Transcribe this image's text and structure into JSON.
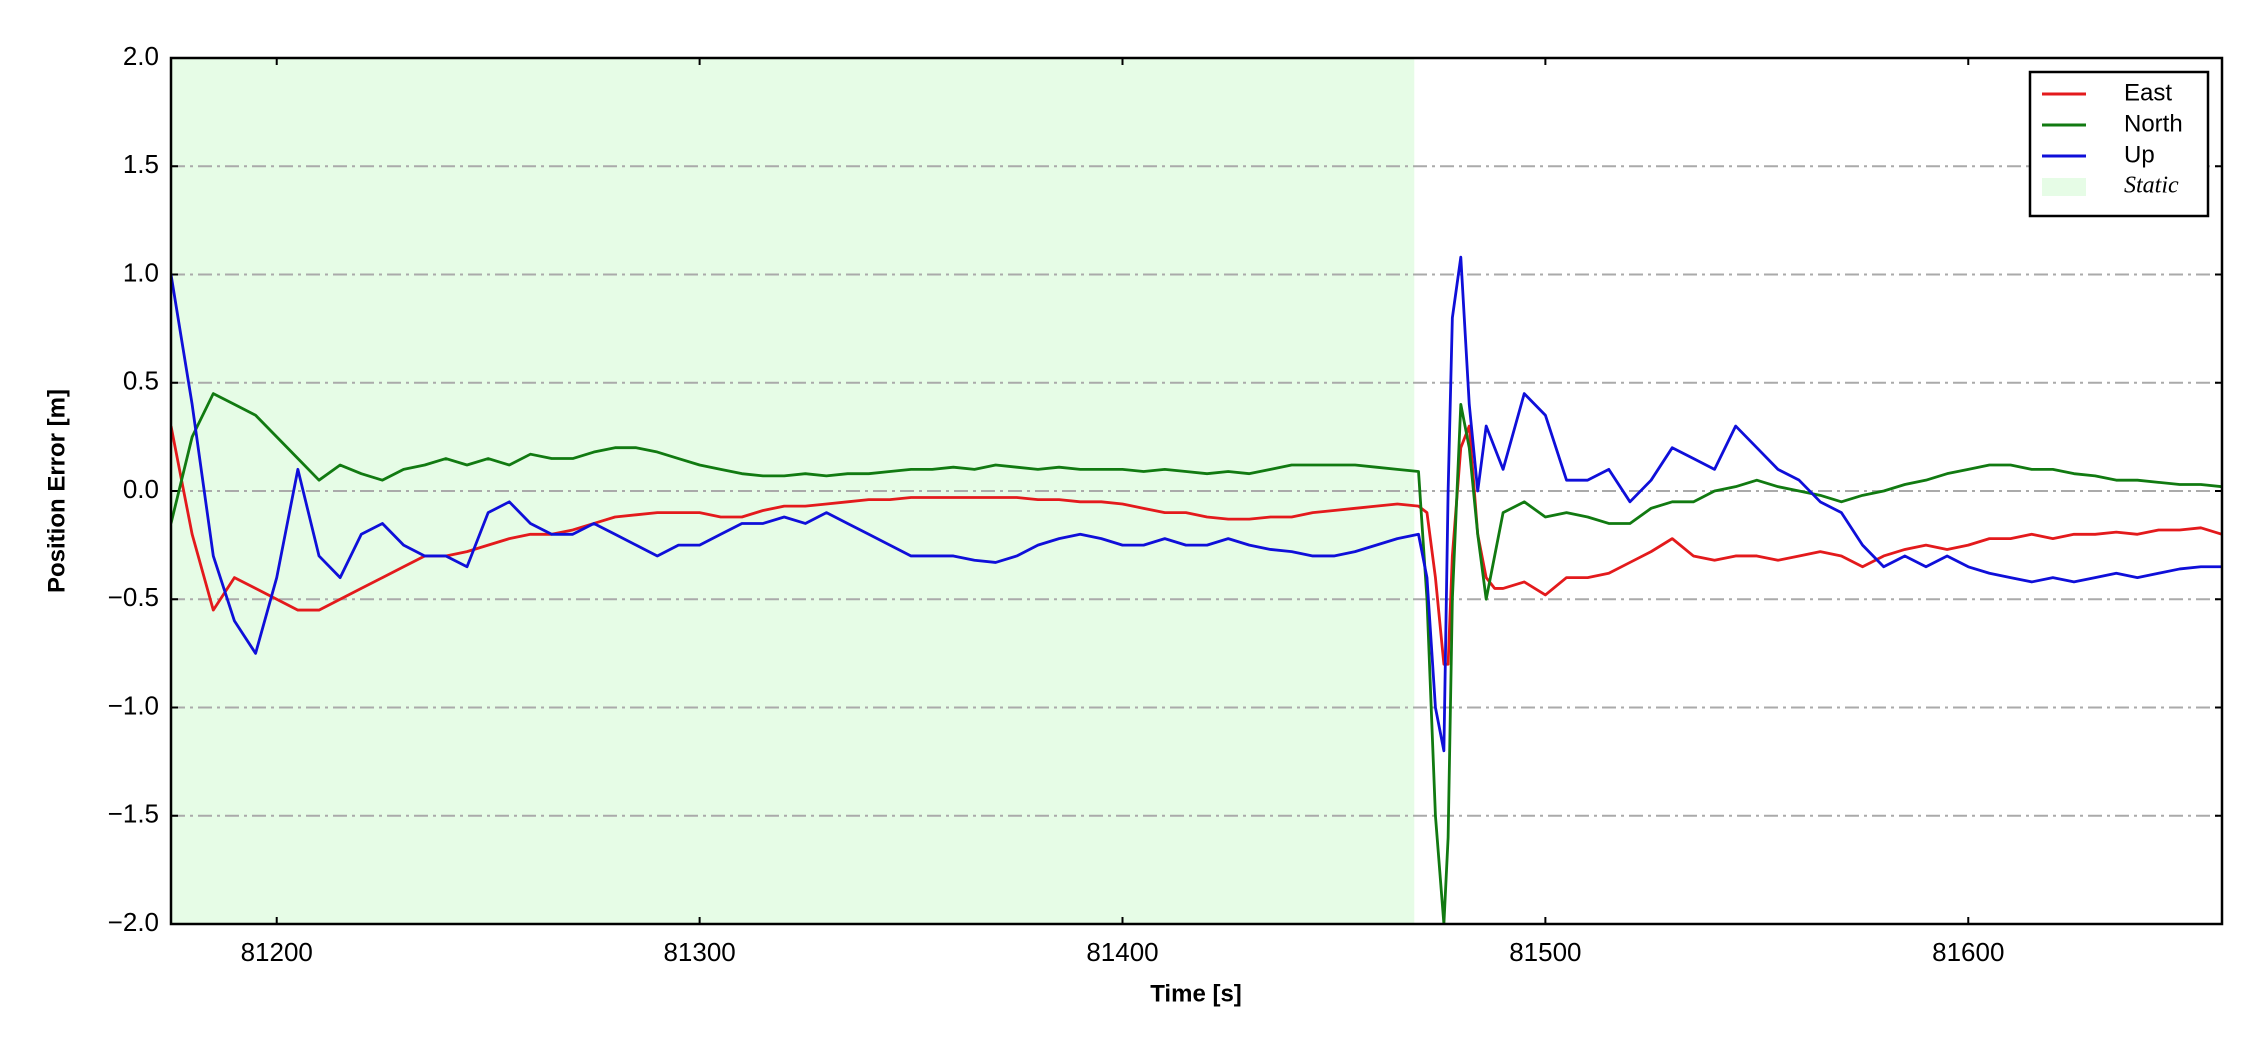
{
  "chart_data": {
    "type": "line",
    "xlabel": "Time [s]",
    "ylabel": "Position Error [m]",
    "x": [
      81175,
      81180,
      81185,
      81190,
      81195,
      81200,
      81205,
      81210,
      81215,
      81220,
      81225,
      81230,
      81235,
      81240,
      81245,
      81250,
      81255,
      81260,
      81265,
      81270,
      81275,
      81280,
      81285,
      81290,
      81295,
      81300,
      81305,
      81310,
      81315,
      81320,
      81325,
      81330,
      81335,
      81340,
      81345,
      81350,
      81355,
      81360,
      81365,
      81370,
      81375,
      81380,
      81385,
      81390,
      81395,
      81400,
      81405,
      81410,
      81415,
      81420,
      81425,
      81430,
      81435,
      81440,
      81445,
      81450,
      81455,
      81460,
      81465,
      81470,
      81472,
      81474,
      81476,
      81477,
      81478,
      81480,
      81482,
      81484,
      81486,
      81488,
      81490,
      81495,
      81500,
      81505,
      81510,
      81515,
      81520,
      81525,
      81530,
      81535,
      81540,
      81545,
      81550,
      81555,
      81560,
      81565,
      81570,
      81575,
      81580,
      81585,
      81590,
      81595,
      81600,
      81605,
      81610,
      81615,
      81620,
      81625,
      81630,
      81635,
      81640,
      81645,
      81650,
      81655,
      81660
    ],
    "series": [
      {
        "name": "East",
        "color": "#e31a1c",
        "values": [
          0.3,
          -0.2,
          -0.55,
          -0.4,
          -0.45,
          -0.5,
          -0.55,
          -0.55,
          -0.5,
          -0.45,
          -0.4,
          -0.35,
          -0.3,
          -0.3,
          -0.28,
          -0.25,
          -0.22,
          -0.2,
          -0.2,
          -0.18,
          -0.15,
          -0.12,
          -0.11,
          -0.1,
          -0.1,
          -0.1,
          -0.12,
          -0.12,
          -0.09,
          -0.07,
          -0.07,
          -0.06,
          -0.05,
          -0.04,
          -0.04,
          -0.03,
          -0.03,
          -0.03,
          -0.03,
          -0.03,
          -0.03,
          -0.04,
          -0.04,
          -0.05,
          -0.05,
          -0.06,
          -0.08,
          -0.1,
          -0.1,
          -0.12,
          -0.13,
          -0.13,
          -0.12,
          -0.12,
          -0.1,
          -0.09,
          -0.08,
          -0.07,
          -0.06,
          -0.07,
          -0.1,
          -0.4,
          -0.8,
          -0.8,
          -0.3,
          0.2,
          0.3,
          -0.2,
          -0.4,
          -0.45,
          -0.45,
          -0.42,
          -0.48,
          -0.4,
          -0.4,
          -0.38,
          -0.33,
          -0.28,
          -0.22,
          -0.3,
          -0.32,
          -0.3,
          -0.3,
          -0.32,
          -0.3,
          -0.28,
          -0.3,
          -0.35,
          -0.3,
          -0.27,
          -0.25,
          -0.27,
          -0.25,
          -0.22,
          -0.22,
          -0.2,
          -0.22,
          -0.2,
          -0.2,
          -0.19,
          -0.2,
          -0.18,
          -0.18,
          -0.17,
          -0.2
        ]
      },
      {
        "name": "North",
        "color": "#117a11",
        "values": [
          -0.15,
          0.25,
          0.45,
          0.4,
          0.35,
          0.25,
          0.15,
          0.05,
          0.12,
          0.08,
          0.05,
          0.1,
          0.12,
          0.15,
          0.12,
          0.15,
          0.12,
          0.17,
          0.15,
          0.15,
          0.18,
          0.2,
          0.2,
          0.18,
          0.15,
          0.12,
          0.1,
          0.08,
          0.07,
          0.07,
          0.08,
          0.07,
          0.08,
          0.08,
          0.09,
          0.1,
          0.1,
          0.11,
          0.1,
          0.12,
          0.11,
          0.1,
          0.11,
          0.1,
          0.1,
          0.1,
          0.09,
          0.1,
          0.09,
          0.08,
          0.09,
          0.08,
          0.1,
          0.12,
          0.12,
          0.12,
          0.12,
          0.11,
          0.1,
          0.09,
          -0.5,
          -1.5,
          -2.0,
          -1.6,
          -0.5,
          0.4,
          0.2,
          -0.2,
          -0.5,
          -0.3,
          -0.1,
          -0.05,
          -0.12,
          -0.1,
          -0.12,
          -0.15,
          -0.15,
          -0.08,
          -0.05,
          -0.05,
          0.0,
          0.02,
          0.05,
          0.02,
          0.0,
          -0.02,
          -0.05,
          -0.02,
          0.0,
          0.03,
          0.05,
          0.08,
          0.1,
          0.12,
          0.12,
          0.1,
          0.1,
          0.08,
          0.07,
          0.05,
          0.05,
          0.04,
          0.03,
          0.03,
          0.02
        ]
      },
      {
        "name": "Up",
        "color": "#0f0fd9",
        "values": [
          1.0,
          0.4,
          -0.3,
          -0.6,
          -0.75,
          -0.4,
          0.1,
          -0.3,
          -0.4,
          -0.2,
          -0.15,
          -0.25,
          -0.3,
          -0.3,
          -0.35,
          -0.1,
          -0.05,
          -0.15,
          -0.2,
          -0.2,
          -0.15,
          -0.2,
          -0.25,
          -0.3,
          -0.25,
          -0.25,
          -0.2,
          -0.15,
          -0.15,
          -0.12,
          -0.15,
          -0.1,
          -0.15,
          -0.2,
          -0.25,
          -0.3,
          -0.3,
          -0.3,
          -0.32,
          -0.33,
          -0.3,
          -0.25,
          -0.22,
          -0.2,
          -0.22,
          -0.25,
          -0.25,
          -0.22,
          -0.25,
          -0.25,
          -0.22,
          -0.25,
          -0.27,
          -0.28,
          -0.3,
          -0.3,
          -0.28,
          -0.25,
          -0.22,
          -0.2,
          -0.4,
          -1.0,
          -1.2,
          0.0,
          0.8,
          1.08,
          0.4,
          0.0,
          0.3,
          0.2,
          0.1,
          0.45,
          0.35,
          0.05,
          0.05,
          0.1,
          -0.05,
          0.05,
          0.2,
          0.15,
          0.1,
          0.3,
          0.2,
          0.1,
          0.05,
          -0.05,
          -0.1,
          -0.25,
          -0.35,
          -0.3,
          -0.35,
          -0.3,
          -0.35,
          -0.38,
          -0.4,
          -0.42,
          -0.4,
          -0.42,
          -0.4,
          -0.38,
          -0.4,
          -0.38,
          -0.36,
          -0.35,
          -0.35
        ]
      }
    ],
    "span": {
      "name": "Static",
      "x": [
        81175,
        81469
      ],
      "color": "#e6fce6"
    },
    "xlim": [
      81175,
      81660
    ],
    "ylim": [
      -2,
      2
    ],
    "xticks": [
      81200,
      81300,
      81400,
      81500,
      81600
    ],
    "yticks": [
      {
        "value": -2,
        "label": "−2.0"
      },
      {
        "value": -1.5,
        "label": "−1.5"
      },
      {
        "value": -1,
        "label": "−1.0"
      },
      {
        "value": -0.5,
        "label": "−0.5"
      },
      {
        "value": 0,
        "label": "0.0"
      },
      {
        "value": 0.5,
        "label": "0.5"
      },
      {
        "value": 1,
        "label": "1.0"
      },
      {
        "value": 1.5,
        "label": "1.5"
      },
      {
        "value": 2,
        "label": "2.0"
      }
    ],
    "grid": true,
    "legend": "upper right"
  }
}
